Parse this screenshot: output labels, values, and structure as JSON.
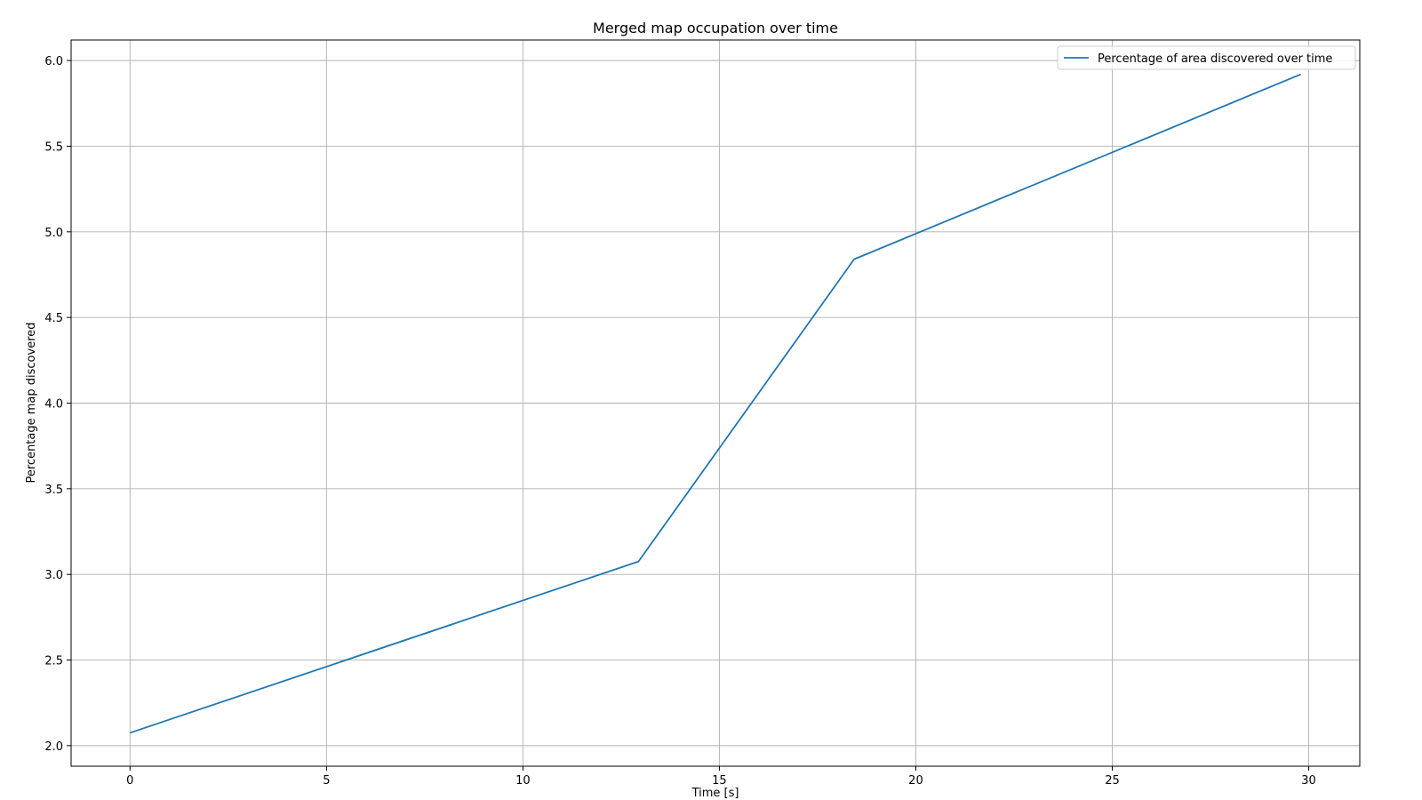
{
  "chart_data": {
    "type": "line",
    "title": "Merged map occupation over time",
    "xlabel": "Time [s]",
    "ylabel": "Percentage map discovered",
    "xlim": [
      -1.5,
      31.3
    ],
    "ylim": [
      1.88,
      6.12
    ],
    "xticks": [
      0,
      5,
      10,
      15,
      20,
      25,
      30
    ],
    "xtick_labels": [
      "0",
      "5",
      "10",
      "15",
      "20",
      "25",
      "30"
    ],
    "yticks": [
      2.0,
      2.5,
      3.0,
      3.5,
      4.0,
      4.5,
      5.0,
      5.5,
      6.0
    ],
    "ytick_labels": [
      "2.0",
      "2.5",
      "3.0",
      "3.5",
      "4.0",
      "4.5",
      "5.0",
      "5.5",
      "6.0"
    ],
    "grid": true,
    "legend_position": "top-right",
    "series": [
      {
        "name": "Percentage of area discovered over time",
        "color": "#1f77b4",
        "x": [
          0,
          12.94,
          18.43,
          29.8
        ],
        "y": [
          2.075,
          3.075,
          4.84,
          5.92
        ]
      }
    ]
  }
}
